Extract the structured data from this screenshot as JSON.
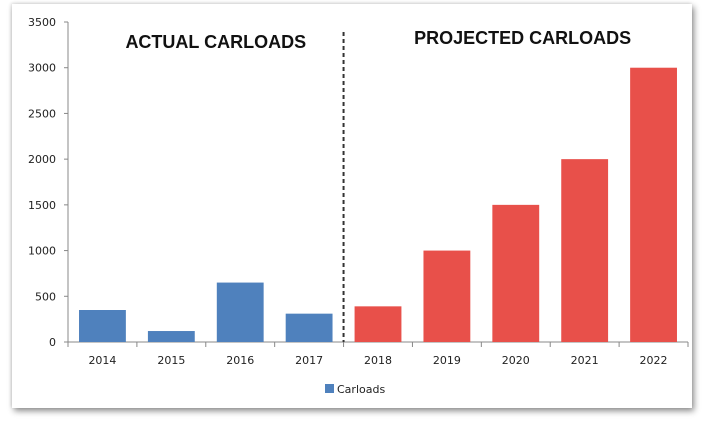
{
  "chart_data": {
    "type": "bar",
    "categories": [
      "2014",
      "2015",
      "2016",
      "2017",
      "2018",
      "2019",
      "2020",
      "2021",
      "2022"
    ],
    "series": [
      {
        "name": "Carloads",
        "values": [
          350,
          120,
          650,
          310,
          390,
          1000,
          1500,
          2000,
          3000
        ],
        "point_colors": [
          "#4f81bd",
          "#4f81bd",
          "#4f81bd",
          "#4f81bd",
          "#e8504a",
          "#e8504a",
          "#e8504a",
          "#e8504a",
          "#e8504a"
        ]
      }
    ],
    "ylim": [
      0,
      3500
    ],
    "yticks": [
      "0",
      "500",
      "1000",
      "1500",
      "2000",
      "2500",
      "3000",
      "3500"
    ],
    "annotations": [
      "ACTUAL CARLOADS",
      "PROJECTED CARLOADS"
    ],
    "divider_between": [
      "2017",
      "2018"
    ],
    "legend": {
      "position": "bottom",
      "label": "Carloads",
      "color": "#4f81bd"
    },
    "grid": false
  }
}
